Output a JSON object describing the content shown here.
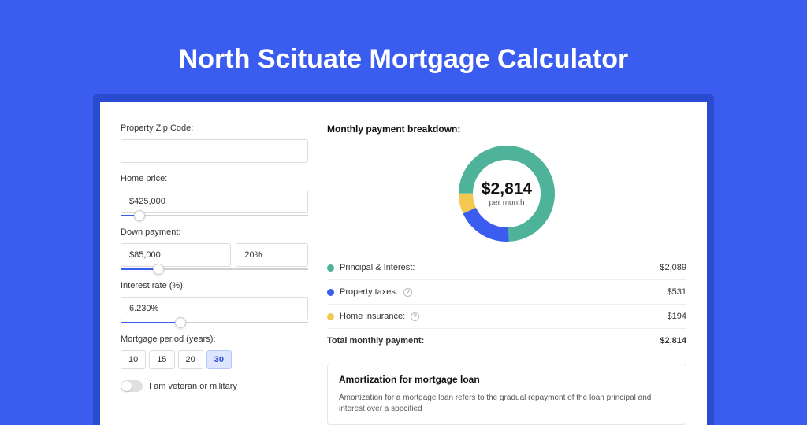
{
  "page": {
    "title": "North Scituate Mortgage Calculator",
    "background_color": "#3a5df0",
    "card_shadow_color": "#2a4ad0"
  },
  "form": {
    "zip": {
      "label": "Property Zip Code:",
      "value": ""
    },
    "home_price": {
      "label": "Home price:",
      "value": "$425,000",
      "slider_pct": 10
    },
    "down_payment": {
      "label": "Down payment:",
      "amount": "$85,000",
      "percent": "20%",
      "slider_pct": 20
    },
    "interest_rate": {
      "label": "Interest rate (%):",
      "value": "6.230%",
      "slider_pct": 32
    },
    "period": {
      "label": "Mortgage period (years):",
      "options": [
        "10",
        "15",
        "20",
        "30"
      ],
      "selected": "30"
    },
    "veteran": {
      "label": "I am veteran or military",
      "checked": false
    }
  },
  "breakdown": {
    "title": "Monthly payment breakdown:",
    "donut": {
      "amount": "$2,814",
      "sub": "per month",
      "size": 122,
      "thickness": 18,
      "segments": [
        {
          "color": "#4fb39a",
          "fraction": 0.742
        },
        {
          "color": "#3a5df0",
          "fraction": 0.189
        },
        {
          "color": "#f4c850",
          "fraction": 0.069
        }
      ]
    },
    "items": [
      {
        "label": "Principal & Interest:",
        "value": "$2,089",
        "color": "#4fb39a",
        "help": false
      },
      {
        "label": "Property taxes:",
        "value": "$531",
        "color": "#3a5df0",
        "help": true
      },
      {
        "label": "Home insurance:",
        "value": "$194",
        "color": "#f4c850",
        "help": true
      }
    ],
    "total": {
      "label": "Total monthly payment:",
      "value": "$2,814"
    }
  },
  "amortization": {
    "title": "Amortization for mortgage loan",
    "body": "Amortization for a mortgage loan refers to the gradual repayment of the loan principal and interest over a specified"
  }
}
